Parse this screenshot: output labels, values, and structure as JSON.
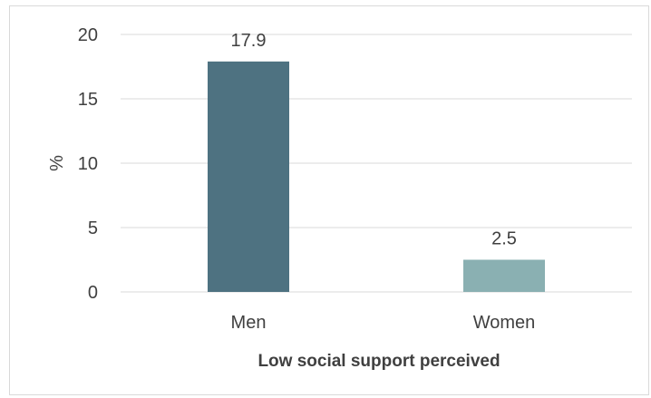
{
  "chart_data": {
    "type": "bar",
    "categories": [
      "Men",
      "Women"
    ],
    "values": [
      17.9,
      2.5
    ],
    "data_labels": [
      "17.9",
      "2.5"
    ],
    "title": "",
    "xlabel": "Low social support perceived",
    "ylabel": "%",
    "ylim": [
      0,
      20
    ],
    "yticks": [
      0,
      5,
      10,
      15,
      20
    ],
    "ytick_labels": [
      "0",
      "5",
      "10",
      "15",
      "20"
    ],
    "grid": true,
    "legend": "none",
    "colors": [
      "#4e7281",
      "#8ab0b2"
    ]
  }
}
